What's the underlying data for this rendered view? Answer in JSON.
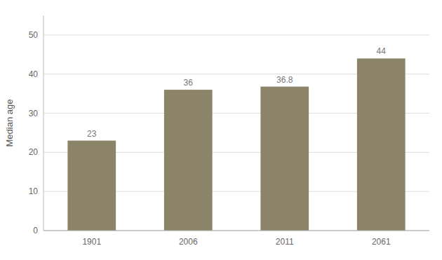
{
  "chart_data": {
    "type": "bar",
    "ylabel": "Median age",
    "categories": [
      "1901",
      "2006",
      "2011",
      "2061"
    ],
    "values": [
      23,
      36,
      36.8,
      44
    ],
    "color": "#8B8468",
    "ylim": [
      0,
      55
    ],
    "yticks": [
      0,
      10,
      20,
      30,
      40,
      50
    ],
    "grid": true,
    "data_labels": true
  }
}
